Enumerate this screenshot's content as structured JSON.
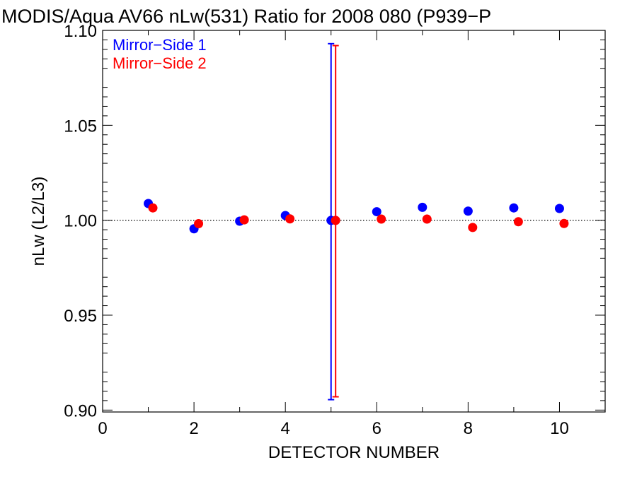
{
  "chart_data": {
    "type": "scatter",
    "title": "MODIS/Aqua AV66 nLw(531) Ratio for 2008 080 (P939−P",
    "xlabel": "DETECTOR NUMBER",
    "ylabel": "nLw (L2/L3)",
    "xlim": [
      0,
      11
    ],
    "ylim": [
      0.899,
      1.1
    ],
    "x_ticks": [
      0,
      2,
      4,
      6,
      8,
      10
    ],
    "x_tick_labels": [
      "0",
      "2",
      "4",
      "6",
      "8",
      "10"
    ],
    "y_ticks": [
      0.9,
      0.95,
      1.0,
      1.05,
      1.1
    ],
    "y_tick_labels": [
      "0.90",
      "0.95",
      "1.00",
      "1.05",
      "1.10"
    ],
    "reference_line": 1.0,
    "legend_position": "top-left",
    "series": [
      {
        "name": "Mirror−Side 1",
        "color": "#0000ff",
        "x": [
          1,
          2,
          3,
          4,
          5,
          6,
          7,
          8,
          9,
          10
        ],
        "y": [
          1.0088,
          0.9955,
          0.9995,
          1.0025,
          0.9999,
          1.0045,
          1.0068,
          1.0048,
          1.0065,
          1.0062
        ],
        "error_bars": [
          {
            "x": 5,
            "low": 0.9055,
            "high": 1.093
          }
        ]
      },
      {
        "name": "Mirror−Side 2",
        "color": "#ff0000",
        "x": [
          1.1,
          2.1,
          3.1,
          4.1,
          5.1,
          6.1,
          7.1,
          8.1,
          9.1,
          10.1
        ],
        "y": [
          1.0065,
          0.9982,
          1.0002,
          1.0007,
          0.9999,
          1.0006,
          1.0006,
          0.9962,
          0.9992,
          0.9983
        ],
        "error_bars": [
          {
            "x": 5.1,
            "low": 0.907,
            "high": 1.092
          }
        ]
      }
    ]
  }
}
